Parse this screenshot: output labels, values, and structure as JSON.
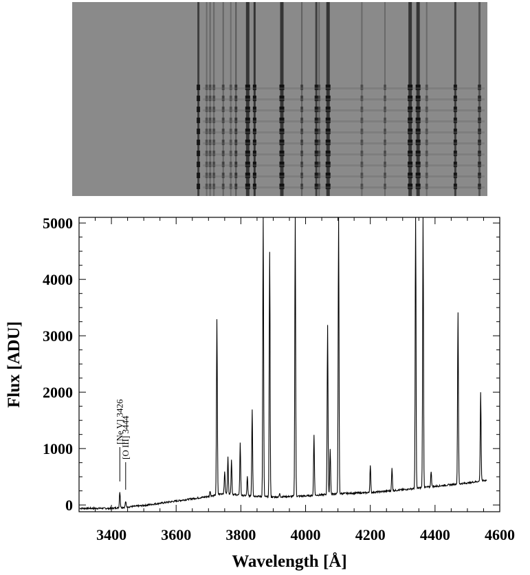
{
  "chart_data": {
    "type": "line",
    "xlabel": "Wavelength [Å]",
    "ylabel": "Flux [ADU]",
    "xlim": [
      3300,
      4600
    ],
    "ylim": [
      -120,
      5100
    ],
    "xticks": [
      3400,
      3600,
      3800,
      4000,
      4200,
      4400,
      4600
    ],
    "yticks": [
      0,
      1000,
      2000,
      3000,
      4000,
      5000
    ],
    "xtick_labels": [
      "3400",
      "3600",
      "3800",
      "4000",
      "4200",
      "4400",
      "4600"
    ],
    "ytick_labels": [
      "0",
      "1000",
      "2000",
      "3000",
      "4000",
      "5000"
    ],
    "continuum": [
      [
        3300,
        -60
      ],
      [
        3400,
        -60
      ],
      [
        3500,
        -10
      ],
      [
        3600,
        70
      ],
      [
        3700,
        150
      ],
      [
        3750,
        210
      ],
      [
        3800,
        170
      ],
      [
        3900,
        140
      ],
      [
        4000,
        160
      ],
      [
        4100,
        200
      ],
      [
        4200,
        220
      ],
      [
        4300,
        270
      ],
      [
        4400,
        330
      ],
      [
        4500,
        390
      ],
      [
        4560,
        440
      ]
    ],
    "emission_lines": [
      {
        "wavelength": 3426,
        "peak": 240
      },
      {
        "wavelength": 3444,
        "peak": 60
      },
      {
        "wavelength": 3705,
        "peak": 250
      },
      {
        "wavelength": 3726,
        "peak": 3300
      },
      {
        "wavelength": 3750,
        "peak": 600
      },
      {
        "wavelength": 3760,
        "peak": 850
      },
      {
        "wavelength": 3771,
        "peak": 800
      },
      {
        "wavelength": 3798,
        "peak": 1100
      },
      {
        "wavelength": 3820,
        "peak": 500
      },
      {
        "wavelength": 3835,
        "peak": 1700
      },
      {
        "wavelength": 3869,
        "peak": 5100
      },
      {
        "wavelength": 3889,
        "peak": 4500
      },
      {
        "wavelength": 3920,
        "peak": 200
      },
      {
        "wavelength": 3968,
        "peak": 5100
      },
      {
        "wavelength": 4026,
        "peak": 1250
      },
      {
        "wavelength": 4068,
        "peak": 3200
      },
      {
        "wavelength": 4076,
        "peak": 1000
      },
      {
        "wavelength": 4102,
        "peak": 5100
      },
      {
        "wavelength": 4200,
        "peak": 700
      },
      {
        "wavelength": 4267,
        "peak": 650
      },
      {
        "wavelength": 4340,
        "peak": 5100
      },
      {
        "wavelength": 4363,
        "peak": 5100
      },
      {
        "wavelength": 4388,
        "peak": 600
      },
      {
        "wavelength": 4471,
        "peak": 3400
      },
      {
        "wavelength": 4541,
        "peak": 2000
      }
    ],
    "annotations": [
      {
        "text": "[Ne V]  3426",
        "wavelength": 3426
      },
      {
        "text": "[O III]  3444",
        "wavelength": 3444
      }
    ]
  },
  "spectrum_image": {
    "background_color": "#8a8a8a",
    "line_color": "#111111"
  }
}
